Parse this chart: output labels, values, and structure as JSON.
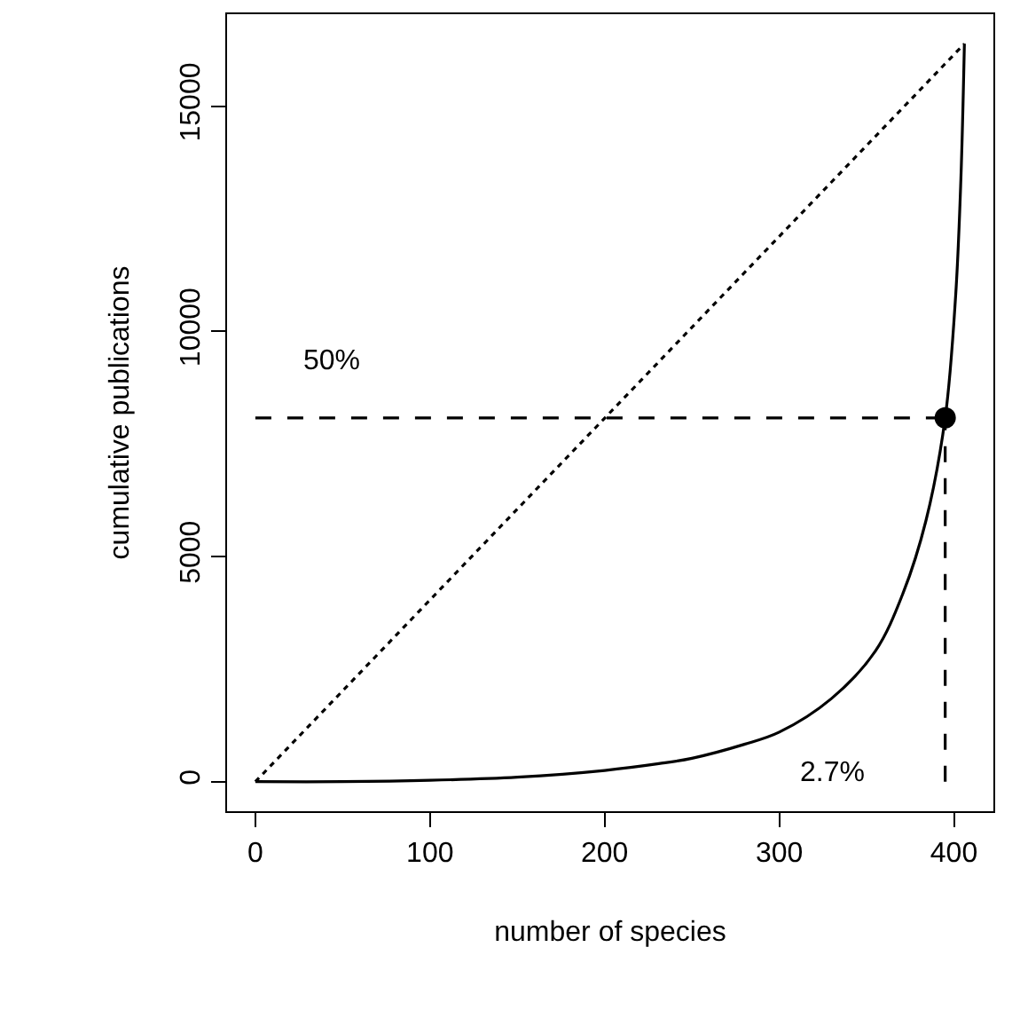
{
  "chart_data": {
    "type": "line",
    "xlabel": "number of species",
    "ylabel": "cumulative publications",
    "xlim": [
      -16.2,
      422.6
    ],
    "ylim": [
      -656,
      17046
    ],
    "xticks": [
      0,
      100,
      200,
      300,
      400
    ],
    "yticks": [
      0,
      5000,
      10000,
      15000
    ],
    "series": [
      {
        "color": "#000000",
        "line_style": "solid",
        "x": [
          0,
          50,
          100,
          150,
          200,
          231,
          250,
          280,
          300,
          330,
          355,
          371,
          384,
          395,
          401,
          404,
          406
        ],
        "values": [
          0,
          0,
          30,
          100,
          250,
          400,
          520,
          830,
          1100,
          1850,
          2900,
          4200,
          5800,
          8080,
          10800,
          13400,
          16390
        ]
      },
      {
        "color": "#000000",
        "line_style": "dotted",
        "x": [
          0,
          406
        ],
        "values": [
          0,
          16390
        ]
      },
      {
        "color": "#000000",
        "line_style": "dashed",
        "x": [
          0,
          395
        ],
        "values": [
          8080,
          8080
        ]
      },
      {
        "color": "#000000",
        "line_style": "dashed",
        "x": [
          395,
          395
        ],
        "values": [
          0,
          8080
        ]
      },
      {
        "type": "scatter",
        "marker": "circle",
        "color": "#000000",
        "x": [
          395
        ],
        "values": [
          8080
        ]
      }
    ],
    "annotations": [
      "50%",
      "2.7%"
    ]
  }
}
